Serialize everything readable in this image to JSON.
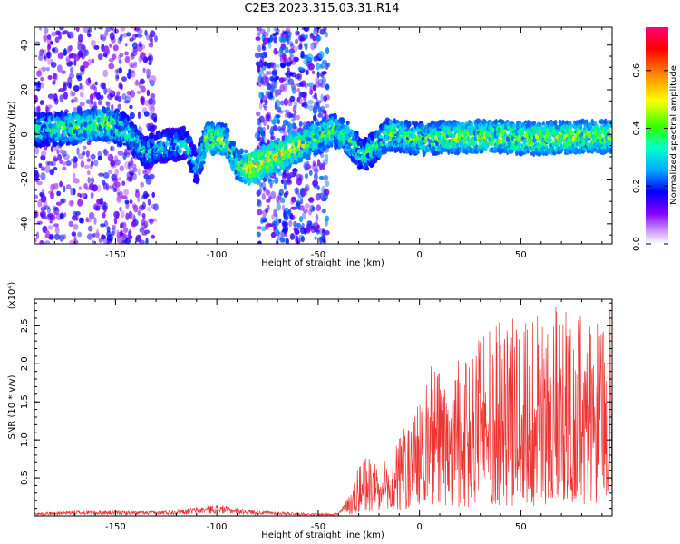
{
  "title": "C2E3.2023.315.03.31.R14",
  "chart_data": [
    {
      "type": "heatmap",
      "title": "C2E3.2023.315.03.31.R14",
      "xlabel": "Height of straight line (km)",
      "ylabel": "Frequency (Hz)",
      "xlim": [
        -190,
        95
      ],
      "ylim": [
        -49,
        48
      ],
      "x_ticks": [
        -150,
        -100,
        -50,
        0,
        50
      ],
      "y_ticks": [
        -40,
        -20,
        0,
        20,
        40
      ],
      "colorbar": {
        "label": "Normalized spectral amplitude",
        "range": [
          0.0,
          0.75
        ],
        "ticks": [
          0.0,
          0.2,
          0.4,
          0.6
        ],
        "colormap": [
          "#ffffff",
          "#8800ff",
          "#0000ff",
          "#00ccff",
          "#00ff88",
          "#66ff00",
          "#ffff00",
          "#ff8800",
          "#ff0000",
          "#ff0077"
        ]
      },
      "regions": [
        {
          "x": [
            -190,
            -130
          ],
          "description_level": 0.15,
          "spread": 49
        },
        {
          "x": [
            -80,
            -45
          ],
          "description_level": 0.2,
          "spread": 49
        }
      ],
      "ridge": [
        {
          "x": -185,
          "y": 2,
          "amp": 0.35
        },
        {
          "x": -170,
          "y": 3,
          "amp": 0.4
        },
        {
          "x": -155,
          "y": 5,
          "amp": 0.42
        },
        {
          "x": -145,
          "y": 2,
          "amp": 0.35
        },
        {
          "x": -135,
          "y": -8,
          "amp": 0.3
        },
        {
          "x": -125,
          "y": -5,
          "amp": 0.3
        },
        {
          "x": -115,
          "y": -4,
          "amp": 0.3
        },
        {
          "x": -110,
          "y": -15,
          "amp": 0.3
        },
        {
          "x": -105,
          "y": -2,
          "amp": 0.45
        },
        {
          "x": -95,
          "y": -3,
          "amp": 0.4
        },
        {
          "x": -90,
          "y": -14,
          "amp": 0.4
        },
        {
          "x": -83,
          "y": -15,
          "amp": 0.55
        },
        {
          "x": -42,
          "y": 2,
          "amp": 0.4
        },
        {
          "x": -35,
          "y": -2,
          "amp": 0.4
        },
        {
          "x": -28,
          "y": -10,
          "amp": 0.35
        },
        {
          "x": -15,
          "y": 0,
          "amp": 0.4
        },
        {
          "x": 0,
          "y": -2,
          "amp": 0.4
        },
        {
          "x": 20,
          "y": -1,
          "amp": 0.45
        },
        {
          "x": 40,
          "y": -1,
          "amp": 0.45
        },
        {
          "x": 60,
          "y": -2,
          "amp": 0.45
        },
        {
          "x": 80,
          "y": -1,
          "amp": 0.45
        },
        {
          "x": 95,
          "y": -1,
          "amp": 0.45
        }
      ]
    },
    {
      "type": "line",
      "xlabel": "Height of straight line (km)",
      "ylabel": "SNR (10 * v/v)",
      "y_multiplier": "(x10⁴)",
      "xlim": [
        -190,
        95
      ],
      "ylim": [
        0,
        2.85
      ],
      "x_ticks": [
        -150,
        -100,
        -50,
        0,
        50
      ],
      "y_ticks": [
        0.5,
        1.0,
        1.5,
        2.0,
        2.5
      ],
      "color": "#ee3333",
      "envelope": [
        {
          "x": -190,
          "y": 0.04
        },
        {
          "x": -170,
          "y": 0.07
        },
        {
          "x": -130,
          "y": 0.06
        },
        {
          "x": -115,
          "y": 0.1
        },
        {
          "x": -100,
          "y": 0.15
        },
        {
          "x": -80,
          "y": 0.07
        },
        {
          "x": -50,
          "y": 0.03
        },
        {
          "x": -40,
          "y": 0.04
        },
        {
          "x": -33,
          "y": 0.35
        },
        {
          "x": -30,
          "y": 0.7
        },
        {
          "x": -25,
          "y": 0.8
        },
        {
          "x": -20,
          "y": 0.7
        },
        {
          "x": -15,
          "y": 0.75
        },
        {
          "x": -10,
          "y": 1.15
        },
        {
          "x": -5,
          "y": 1.2
        },
        {
          "x": 0,
          "y": 1.5
        },
        {
          "x": 5,
          "y": 2.0
        },
        {
          "x": 15,
          "y": 1.85
        },
        {
          "x": 25,
          "y": 2.3
        },
        {
          "x": 35,
          "y": 2.5
        },
        {
          "x": 45,
          "y": 2.7
        },
        {
          "x": 55,
          "y": 2.6
        },
        {
          "x": 65,
          "y": 2.75
        },
        {
          "x": 75,
          "y": 2.75
        },
        {
          "x": 85,
          "y": 2.6
        },
        {
          "x": 95,
          "y": 2.8
        }
      ]
    }
  ]
}
